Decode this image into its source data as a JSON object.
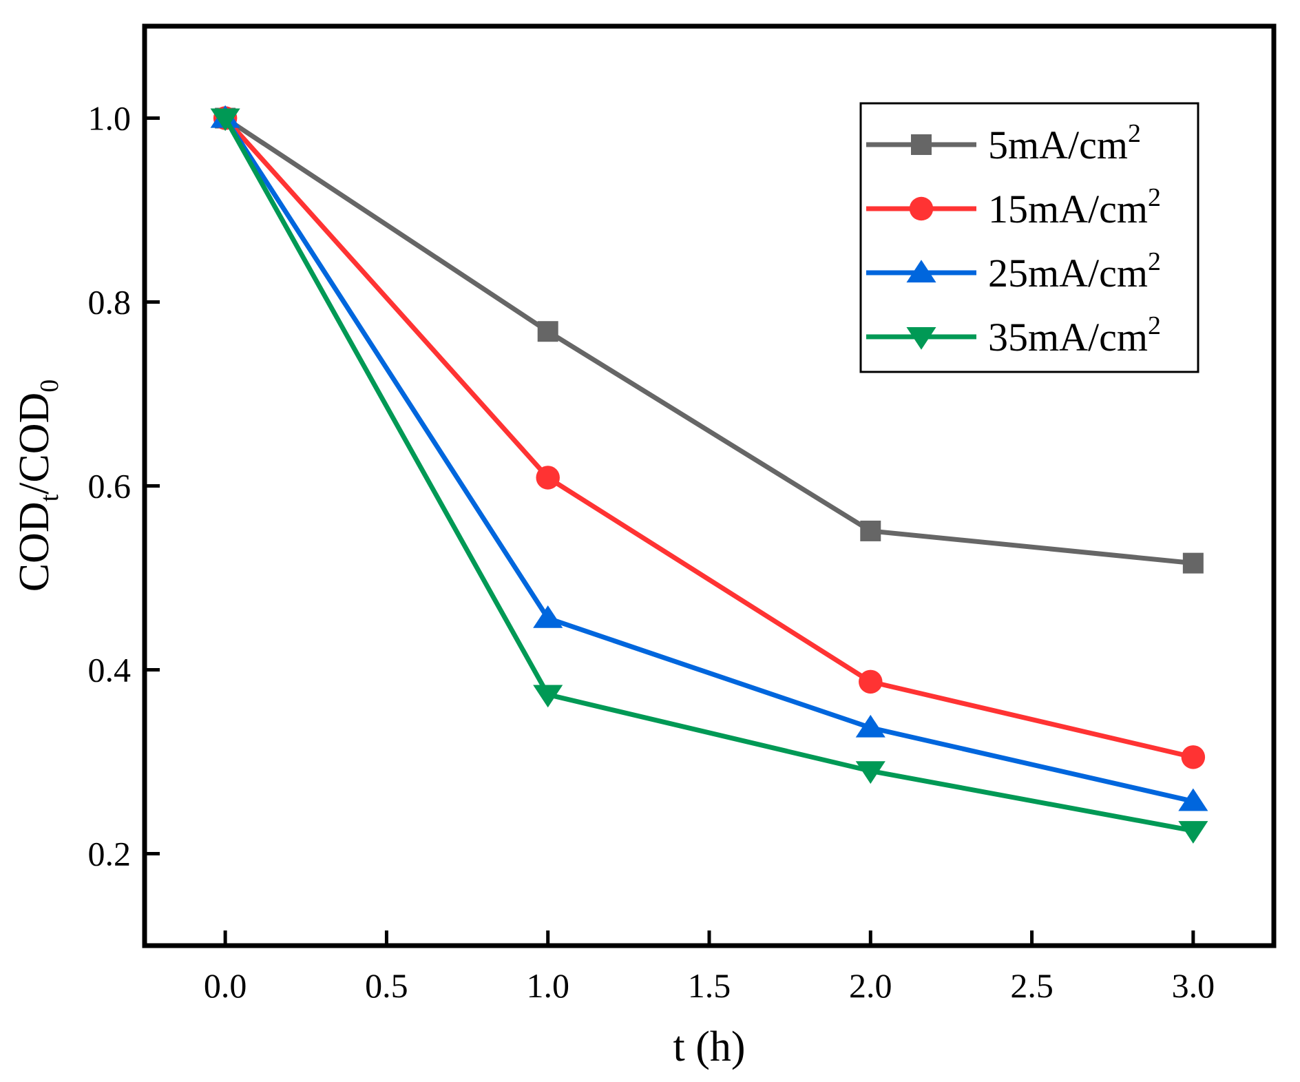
{
  "chart_data": {
    "type": "line",
    "title": "",
    "xlabel": "t (h)",
    "ylabel": {
      "base": "COD",
      "sub_num": "t",
      "sep": "/",
      "base2": "COD",
      "sub_den": "0"
    },
    "xlim": [
      -0.25,
      3.25
    ],
    "ylim": [
      0.1,
      1.1
    ],
    "xticks": [
      0.0,
      0.5,
      1.0,
      1.5,
      2.0,
      2.5,
      3.0
    ],
    "xtick_labels": [
      "0.0",
      "0.5",
      "1.0",
      "1.5",
      "2.0",
      "2.5",
      "3.0"
    ],
    "yticks": [
      0.2,
      0.4,
      0.6,
      0.8,
      1.0
    ],
    "ytick_labels": [
      "0.2",
      "0.4",
      "0.6",
      "0.8",
      "1.0"
    ],
    "grid": false,
    "legend_position": "top-right",
    "x": [
      0,
      1,
      2,
      3
    ],
    "series": [
      {
        "name": "5mA/cm",
        "sup": "2",
        "color": "#666666",
        "marker": "square",
        "values": [
          1.0,
          0.768,
          0.551,
          0.516
        ]
      },
      {
        "name": "15mA/cm",
        "sup": "2",
        "color": "#ff3333",
        "marker": "circle",
        "values": [
          1.0,
          0.609,
          0.387,
          0.305
        ]
      },
      {
        "name": "25mA/cm",
        "sup": "2",
        "color": "#0066dd",
        "marker": "triangle-up",
        "values": [
          1.0,
          0.456,
          0.337,
          0.257
        ]
      },
      {
        "name": "35mA/cm",
        "sup": "2",
        "color": "#009955",
        "marker": "triangle-down",
        "values": [
          1.0,
          0.373,
          0.29,
          0.225
        ]
      }
    ]
  }
}
